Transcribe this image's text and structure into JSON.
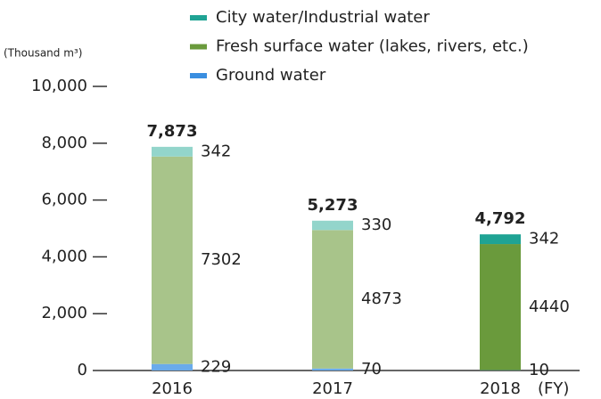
{
  "chart_data": {
    "type": "stacked_bar",
    "y_axis_label": "(Thousand m³)",
    "x_axis_label": "(FY)",
    "categories": [
      "2016",
      "2017",
      "2018"
    ],
    "series": [
      {
        "name": "Ground water",
        "color": "#3a8ee0",
        "bar_colors": [
          "#6aabeb",
          "#6aabeb",
          "#3a8ee0"
        ],
        "values": [
          229,
          70,
          10
        ]
      },
      {
        "name": "Fresh surface water (lakes, rivers, etc.)",
        "color": "#6a9a3c",
        "bar_colors": [
          "#a8c48a",
          "#a8c48a",
          "#6a9a3c"
        ],
        "values": [
          7302,
          4873,
          4440
        ]
      },
      {
        "name": "City water/Industrial water",
        "color": "#1fa394",
        "bar_colors": [
          "#93d5cb",
          "#93d5cb",
          "#1fa394"
        ],
        "values": [
          342,
          330,
          342
        ]
      }
    ],
    "totals": [
      7873,
      5273,
      4792
    ],
    "total_labels": [
      "7,873",
      "5,273",
      "4,792"
    ],
    "ylim": [
      0,
      10000
    ],
    "yticks": [
      0,
      {
        "value": 2000,
        "label": "2,000"
      },
      {
        "value": 4000,
        "label": "4,000"
      },
      {
        "value": 6000,
        "label": "6,000"
      },
      {
        "value": 8000,
        "label": "8,000"
      },
      {
        "value": 10000,
        "label": "10,000"
      }
    ]
  }
}
